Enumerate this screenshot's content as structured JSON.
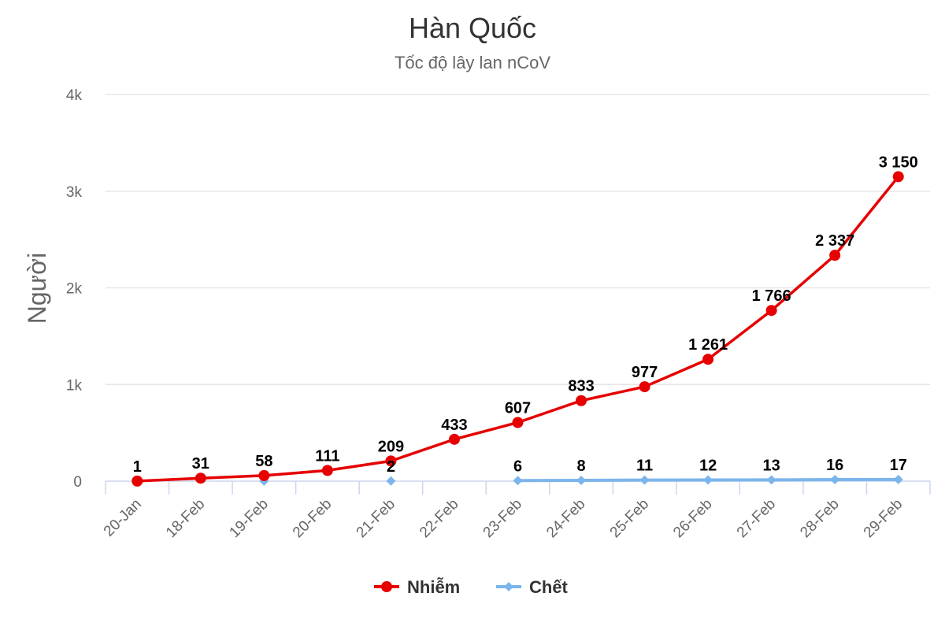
{
  "chart_data": {
    "type": "line",
    "title": "Hàn Quốc",
    "subtitle": "Tốc độ lây lan nCoV",
    "xlabel": "",
    "ylabel": "Người",
    "ylim": [
      0,
      4000
    ],
    "yticks": [
      {
        "value": 0,
        "label": "0"
      },
      {
        "value": 1000,
        "label": "1k"
      },
      {
        "value": 2000,
        "label": "2k"
      },
      {
        "value": 3000,
        "label": "3k"
      },
      {
        "value": 4000,
        "label": "4k"
      }
    ],
    "grid": true,
    "legend_position": "bottom-center",
    "categories": [
      "20-Jan",
      "18-Feb",
      "19-Feb",
      "20-Feb",
      "21-Feb",
      "22-Feb",
      "23-Feb",
      "24-Feb",
      "25-Feb",
      "26-Feb",
      "27-Feb",
      "28-Feb",
      "29-Feb"
    ],
    "series": [
      {
        "name": "Nhiễm",
        "color": "#e60000",
        "marker": "circle",
        "values": [
          1,
          31,
          58,
          111,
          209,
          433,
          607,
          833,
          977,
          1261,
          1766,
          2337,
          3150
        ],
        "labels": [
          "1",
          "31",
          "58",
          "111",
          "209",
          "433",
          "607",
          "833",
          "977",
          "1 261",
          "1 766",
          "2 337",
          "3 150"
        ]
      },
      {
        "name": "Chết",
        "color": "#7cb5ec",
        "marker": "diamond",
        "values": [
          null,
          null,
          1,
          null,
          2,
          null,
          6,
          8,
          11,
          12,
          13,
          16,
          17
        ],
        "labels": [
          null,
          null,
          null,
          null,
          "2",
          null,
          "6",
          "8",
          "11",
          "12",
          "13",
          "16",
          "17"
        ]
      }
    ]
  }
}
